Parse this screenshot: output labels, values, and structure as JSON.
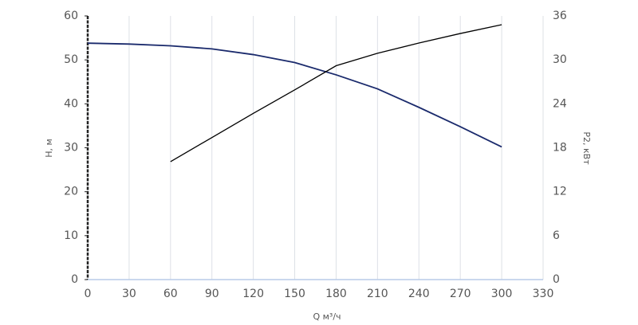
{
  "chart_data": {
    "type": "line",
    "x_label": "Q м³/ч",
    "y_label": "H, м",
    "y2_label": "P2, кВт",
    "xlim": [
      0,
      330
    ],
    "xticks": [
      0,
      30,
      60,
      90,
      120,
      150,
      180,
      210,
      240,
      270,
      300,
      330
    ],
    "ylim": [
      0,
      60
    ],
    "yticks": [
      0,
      10,
      20,
      30,
      40,
      50,
      60
    ],
    "y2lim": [
      0,
      36
    ],
    "y2ticks": [
      0,
      6,
      12,
      18,
      24,
      30,
      36
    ],
    "grid": true,
    "series": [
      {
        "name": "H",
        "color": "#1a2a6c",
        "x": [
          0,
          30,
          60,
          90,
          120,
          150,
          180,
          210,
          240,
          270,
          300
        ],
        "values": [
          53.8,
          53.6,
          53.2,
          52.5,
          51.2,
          49.4,
          46.6,
          43.4,
          39.2,
          34.8,
          30.2
        ]
      },
      {
        "name": "P2",
        "color": "#000000",
        "axis": "y2",
        "x": [
          60,
          90,
          120,
          150,
          180,
          210,
          240,
          270,
          300
        ],
        "values": [
          16.1,
          19.4,
          22.7,
          25.9,
          29.2,
          30.9,
          32.3,
          33.6,
          34.8
        ]
      }
    ]
  }
}
